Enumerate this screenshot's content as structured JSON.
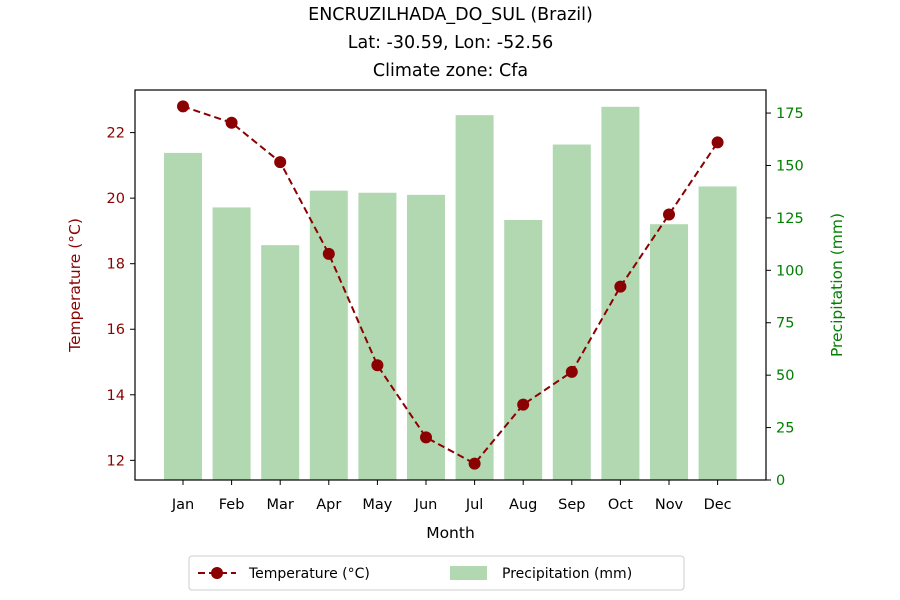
{
  "chart_data": {
    "type": "bar+line",
    "title": [
      "ENCRUZILHADA_DO_SUL (Brazil)",
      "Lat: -30.59, Lon: -52.56",
      "Climate zone: Cfa"
    ],
    "xlabel": "Month",
    "ylabel_left": "Temperature (°C)",
    "ylabel_right": "Precipitation (mm)",
    "categories": [
      "Jan",
      "Feb",
      "Mar",
      "Apr",
      "May",
      "Jun",
      "Jul",
      "Aug",
      "Sep",
      "Oct",
      "Nov",
      "Dec"
    ],
    "series": [
      {
        "name": "Temperature (°C)",
        "kind": "line",
        "axis": "left",
        "color": "#8b0000",
        "values": [
          22.8,
          22.3,
          21.1,
          18.3,
          14.9,
          12.7,
          11.9,
          13.7,
          14.7,
          17.3,
          19.5,
          21.7
        ]
      },
      {
        "name": "Precipitation (mm)",
        "kind": "bar",
        "axis": "right",
        "color": "#b2d8b2",
        "values": [
          156,
          130,
          112,
          138,
          137,
          136,
          174,
          124,
          160,
          178,
          122,
          140
        ]
      }
    ],
    "ylim_left": [
      11.4,
      23.3
    ],
    "yticks_left": [
      12,
      14,
      16,
      18,
      20,
      22
    ],
    "ylim_right": [
      0,
      186
    ],
    "yticks_right": [
      0,
      25,
      50,
      75,
      100,
      125,
      150,
      175
    ],
    "left_axis_color": "#8b0000",
    "right_axis_color": "#008000",
    "grid": false,
    "legend_position": "bottom-center"
  }
}
